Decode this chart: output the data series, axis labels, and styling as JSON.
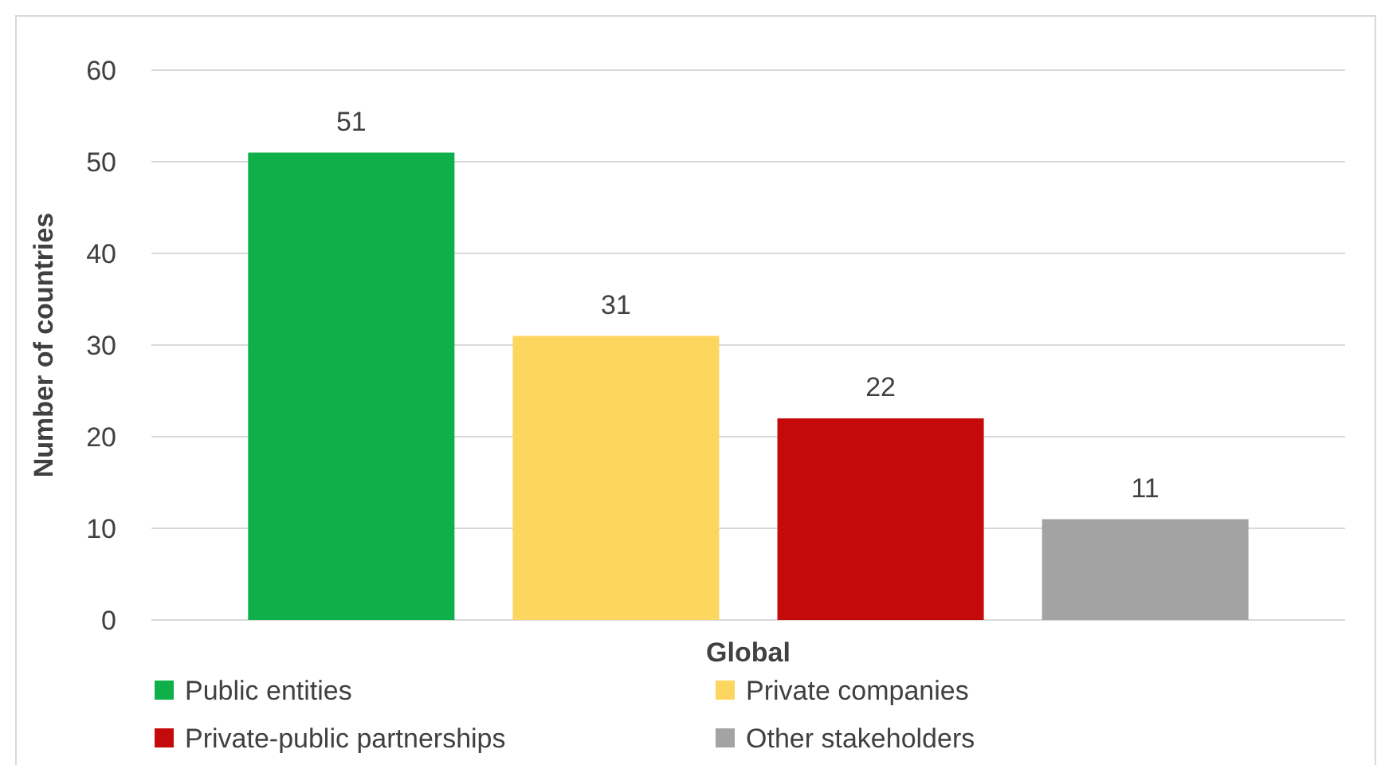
{
  "chart_data": {
    "type": "bar",
    "ylabel": "Number of countries",
    "categories": [
      "Global"
    ],
    "series": [
      {
        "name": "Public entities",
        "color": "#0fb04a",
        "values": [
          51
        ]
      },
      {
        "name": "Private companies",
        "color": "#fdd660",
        "values": [
          31
        ]
      },
      {
        "name": "Private-public partnerships",
        "color": "#c40a0a",
        "values": [
          22
        ]
      },
      {
        "name": "Other stakeholders",
        "color": "#a3a3a3",
        "values": [
          11
        ]
      }
    ],
    "ylim": [
      0,
      60
    ],
    "yticks": [
      0,
      10,
      20,
      30,
      40,
      50,
      60
    ],
    "grid": "y",
    "legend": "bottom",
    "data_labels": true
  }
}
